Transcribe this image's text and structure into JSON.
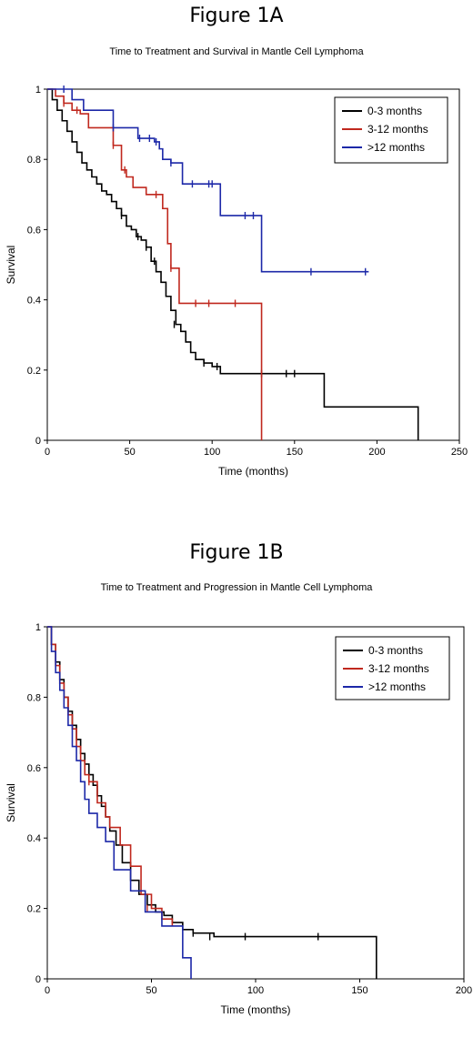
{
  "colors": {
    "black": "#000000",
    "red": "#c0281e",
    "blue": "#1c28a8"
  },
  "chart_data": [
    {
      "figure_label": "Figure 1A",
      "type": "line",
      "step": true,
      "title": "Time to Treatment and Survival in Mantle Cell Lymphoma",
      "xlabel": "Time (months)",
      "ylabel": "Survival",
      "xlim": [
        0,
        250
      ],
      "ylim": [
        0,
        1
      ],
      "xticks": [
        0,
        50,
        100,
        150,
        200,
        250
      ],
      "yticks": [
        0,
        0.2,
        0.4,
        0.6,
        0.8,
        1
      ],
      "ytick_labels": [
        "0",
        "0.2",
        "0.4",
        "0.6",
        "0.8",
        "1"
      ],
      "legend_position": "top-right",
      "series": [
        {
          "name": "0-3 months",
          "color": "#000000",
          "x": [
            0,
            3,
            6,
            9,
            12,
            15,
            18,
            21,
            24,
            27,
            30,
            33,
            36,
            39,
            42,
            45,
            48,
            51,
            54,
            57,
            60,
            63,
            66,
            69,
            72,
            75,
            78,
            81,
            84,
            87,
            90,
            95,
            100,
            105,
            115,
            130,
            140,
            150,
            168,
            225
          ],
          "y": [
            1,
            0.97,
            0.94,
            0.91,
            0.88,
            0.85,
            0.82,
            0.79,
            0.77,
            0.75,
            0.73,
            0.71,
            0.7,
            0.68,
            0.66,
            0.64,
            0.61,
            0.6,
            0.58,
            0.57,
            0.55,
            0.51,
            0.48,
            0.45,
            0.41,
            0.37,
            0.33,
            0.31,
            0.28,
            0.25,
            0.23,
            0.22,
            0.21,
            0.19,
            0.19,
            0.19,
            0.19,
            0.19,
            0.095,
            0
          ],
          "censor_x": [
            45,
            55,
            60,
            65,
            77,
            95,
            103,
            130,
            145,
            150
          ],
          "censor_y": [
            0.64,
            0.58,
            0.55,
            0.51,
            0.33,
            0.22,
            0.21,
            0.19,
            0.19,
            0.19
          ]
        },
        {
          "name": "3-12 months",
          "color": "#c0281e",
          "x": [
            0,
            5,
            10,
            15,
            20,
            25,
            35,
            40,
            45,
            48,
            52,
            60,
            65,
            70,
            73,
            75,
            80,
            100,
            115,
            130
          ],
          "y": [
            1,
            0.98,
            0.96,
            0.94,
            0.93,
            0.89,
            0.89,
            0.84,
            0.77,
            0.75,
            0.72,
            0.7,
            0.7,
            0.66,
            0.56,
            0.49,
            0.39,
            0.39,
            0.39,
            0
          ],
          "censor_x": [
            10,
            18,
            40,
            47,
            66,
            75,
            90,
            98,
            114
          ],
          "censor_y": [
            0.96,
            0.94,
            0.84,
            0.77,
            0.7,
            0.49,
            0.39,
            0.39,
            0.39
          ]
        },
        {
          "name": ">12 months",
          "color": "#1c28a8",
          "x": [
            0,
            15,
            22,
            40,
            55,
            60,
            65,
            68,
            70,
            75,
            82,
            90,
            105,
            115,
            130,
            195
          ],
          "y": [
            1,
            0.97,
            0.94,
            0.89,
            0.86,
            0.86,
            0.85,
            0.83,
            0.8,
            0.79,
            0.73,
            0.73,
            0.64,
            0.64,
            0.48,
            0.48
          ],
          "censor_x": [
            10,
            40,
            56,
            62,
            66,
            75,
            88,
            98,
            100,
            120,
            125,
            160,
            193
          ],
          "censor_y": [
            1,
            0.89,
            0.86,
            0.86,
            0.85,
            0.79,
            0.73,
            0.73,
            0.73,
            0.64,
            0.64,
            0.48,
            0.48
          ]
        }
      ]
    },
    {
      "figure_label": "Figure 1B",
      "type": "line",
      "step": true,
      "title": "Time to Treatment and Progression in Mantle Cell Lymphoma",
      "xlabel": "Time (months)",
      "ylabel": "Survival",
      "xlim": [
        0,
        200
      ],
      "ylim": [
        0,
        1
      ],
      "xticks": [
        0,
        50,
        100,
        150,
        200
      ],
      "yticks": [
        0,
        0.2,
        0.4,
        0.6,
        0.8,
        1
      ],
      "ytick_labels": [
        "0",
        "0.2",
        "0.4",
        "0.6",
        "0.8",
        "1"
      ],
      "legend_position": "top-right",
      "series": [
        {
          "name": "0-3 months",
          "color": "#000000",
          "x": [
            0,
            2,
            4,
            6,
            8,
            10,
            12,
            14,
            16,
            18,
            20,
            22,
            24,
            26,
            28,
            30,
            33,
            36,
            40,
            44,
            48,
            52,
            56,
            60,
            65,
            70,
            80,
            100,
            130,
            158
          ],
          "y": [
            1,
            0.95,
            0.9,
            0.85,
            0.8,
            0.76,
            0.72,
            0.68,
            0.64,
            0.61,
            0.58,
            0.55,
            0.52,
            0.49,
            0.46,
            0.42,
            0.38,
            0.33,
            0.28,
            0.24,
            0.21,
            0.19,
            0.18,
            0.16,
            0.14,
            0.13,
            0.12,
            0.12,
            0.12,
            0
          ],
          "censor_x": [
            70,
            78,
            95,
            130
          ],
          "censor_y": [
            0.13,
            0.12,
            0.12,
            0.12
          ]
        },
        {
          "name": "3-12 months",
          "color": "#c0281e",
          "x": [
            0,
            2,
            4,
            6,
            8,
            10,
            12,
            14,
            16,
            18,
            20,
            24,
            28,
            30,
            35,
            40,
            45,
            50,
            55,
            60
          ],
          "y": [
            1,
            0.95,
            0.89,
            0.84,
            0.8,
            0.75,
            0.71,
            0.66,
            0.62,
            0.58,
            0.56,
            0.5,
            0.46,
            0.43,
            0.38,
            0.32,
            0.24,
            0.2,
            0.17,
            0.15
          ],
          "censor_x": [
            20,
            48
          ],
          "censor_y": [
            0.56,
            0.2
          ]
        },
        {
          "name": ">12 months",
          "color": "#1c28a8",
          "x": [
            0,
            2,
            4,
            6,
            8,
            10,
            12,
            14,
            16,
            18,
            20,
            24,
            28,
            32,
            36,
            40,
            47,
            55,
            65,
            69
          ],
          "y": [
            1,
            0.93,
            0.87,
            0.82,
            0.77,
            0.72,
            0.66,
            0.62,
            0.56,
            0.51,
            0.47,
            0.43,
            0.39,
            0.31,
            0.31,
            0.25,
            0.19,
            0.15,
            0.06,
            0
          ],
          "censor_x": [],
          "censor_y": []
        }
      ]
    }
  ]
}
